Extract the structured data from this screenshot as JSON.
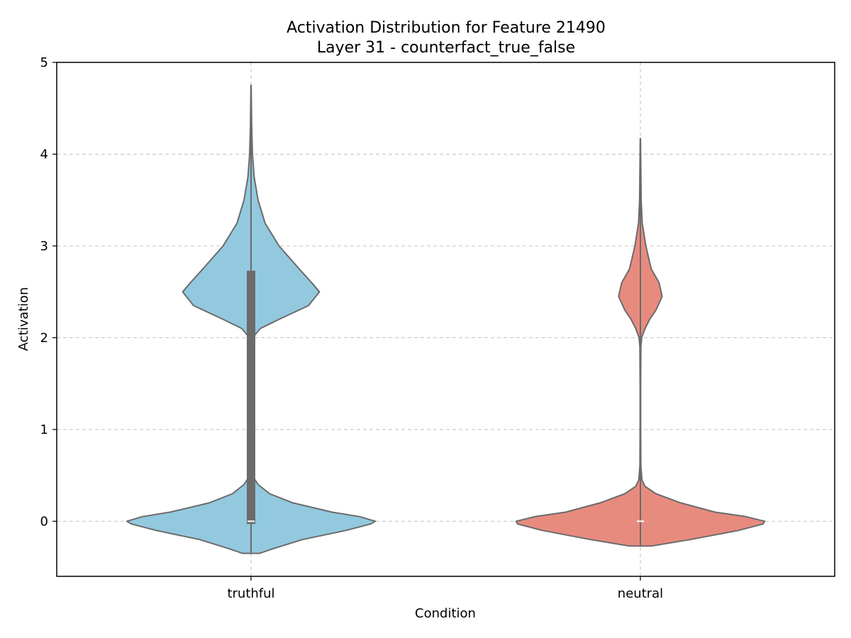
{
  "chart_data": {
    "type": "violin",
    "title": "Activation Distribution for Feature 21490",
    "subtitle": "Layer 31 - counterfact_true_false",
    "xlabel": "Condition",
    "ylabel": "Activation",
    "ylim": [
      -0.6,
      5
    ],
    "yticks": [
      "0",
      "1",
      "2",
      "3",
      "4",
      "5"
    ],
    "grid": true,
    "categories": [
      "truthful",
      "neutral"
    ],
    "series": [
      {
        "category": "truthful",
        "color": "#92c9df",
        "min": -0.35,
        "max": 4.75,
        "q1": -0.03,
        "median": 0.0,
        "q3": 2.73,
        "profile": [
          [
            -0.35,
            0.055
          ],
          [
            -0.3,
            0.14
          ],
          [
            -0.2,
            0.33
          ],
          [
            -0.1,
            0.61
          ],
          [
            -0.03,
            0.77
          ],
          [
            0.0,
            0.8
          ],
          [
            0.05,
            0.7
          ],
          [
            0.1,
            0.52
          ],
          [
            0.2,
            0.27
          ],
          [
            0.3,
            0.12
          ],
          [
            0.4,
            0.045
          ],
          [
            0.48,
            0.015
          ],
          [
            0.55,
            0.006
          ],
          [
            0.7,
            0.003
          ],
          [
            1.0,
            0.002
          ],
          [
            1.5,
            0.002
          ],
          [
            1.9,
            0.004
          ],
          [
            2.0,
            0.01
          ],
          [
            2.1,
            0.06
          ],
          [
            2.2,
            0.18
          ],
          [
            2.35,
            0.37
          ],
          [
            2.5,
            0.44
          ],
          [
            2.6,
            0.39
          ],
          [
            2.75,
            0.31
          ],
          [
            3.0,
            0.18
          ],
          [
            3.25,
            0.09
          ],
          [
            3.5,
            0.045
          ],
          [
            3.75,
            0.02
          ],
          [
            4.0,
            0.009
          ],
          [
            4.3,
            0.004
          ],
          [
            4.6,
            0.002
          ],
          [
            4.75,
            0.001
          ]
        ]
      },
      {
        "category": "neutral",
        "color": "#e88b7f",
        "min": -0.27,
        "max": 4.17,
        "q1": 0.0,
        "median": 0.0,
        "q3": 0.0,
        "profile": [
          [
            -0.27,
            0.07
          ],
          [
            -0.2,
            0.32
          ],
          [
            -0.1,
            0.63
          ],
          [
            -0.03,
            0.79
          ],
          [
            0.0,
            0.8
          ],
          [
            0.05,
            0.68
          ],
          [
            0.1,
            0.48
          ],
          [
            0.2,
            0.26
          ],
          [
            0.3,
            0.1
          ],
          [
            0.38,
            0.03
          ],
          [
            0.45,
            0.01
          ],
          [
            0.6,
            0.003
          ],
          [
            1.0,
            0.002
          ],
          [
            1.5,
            0.002
          ],
          [
            1.9,
            0.003
          ],
          [
            2.0,
            0.008
          ],
          [
            2.1,
            0.03
          ],
          [
            2.2,
            0.06
          ],
          [
            2.3,
            0.1
          ],
          [
            2.45,
            0.14
          ],
          [
            2.6,
            0.12
          ],
          [
            2.75,
            0.07
          ],
          [
            3.0,
            0.035
          ],
          [
            3.25,
            0.012
          ],
          [
            3.5,
            0.005
          ],
          [
            3.8,
            0.003
          ],
          [
            4.17,
            0.001
          ]
        ]
      }
    ],
    "colors": {
      "outline": "#6b6b6b",
      "box": "#6b6b6b",
      "median": "#ffffff",
      "grid": "#cccccc",
      "axis": "#000000"
    }
  }
}
